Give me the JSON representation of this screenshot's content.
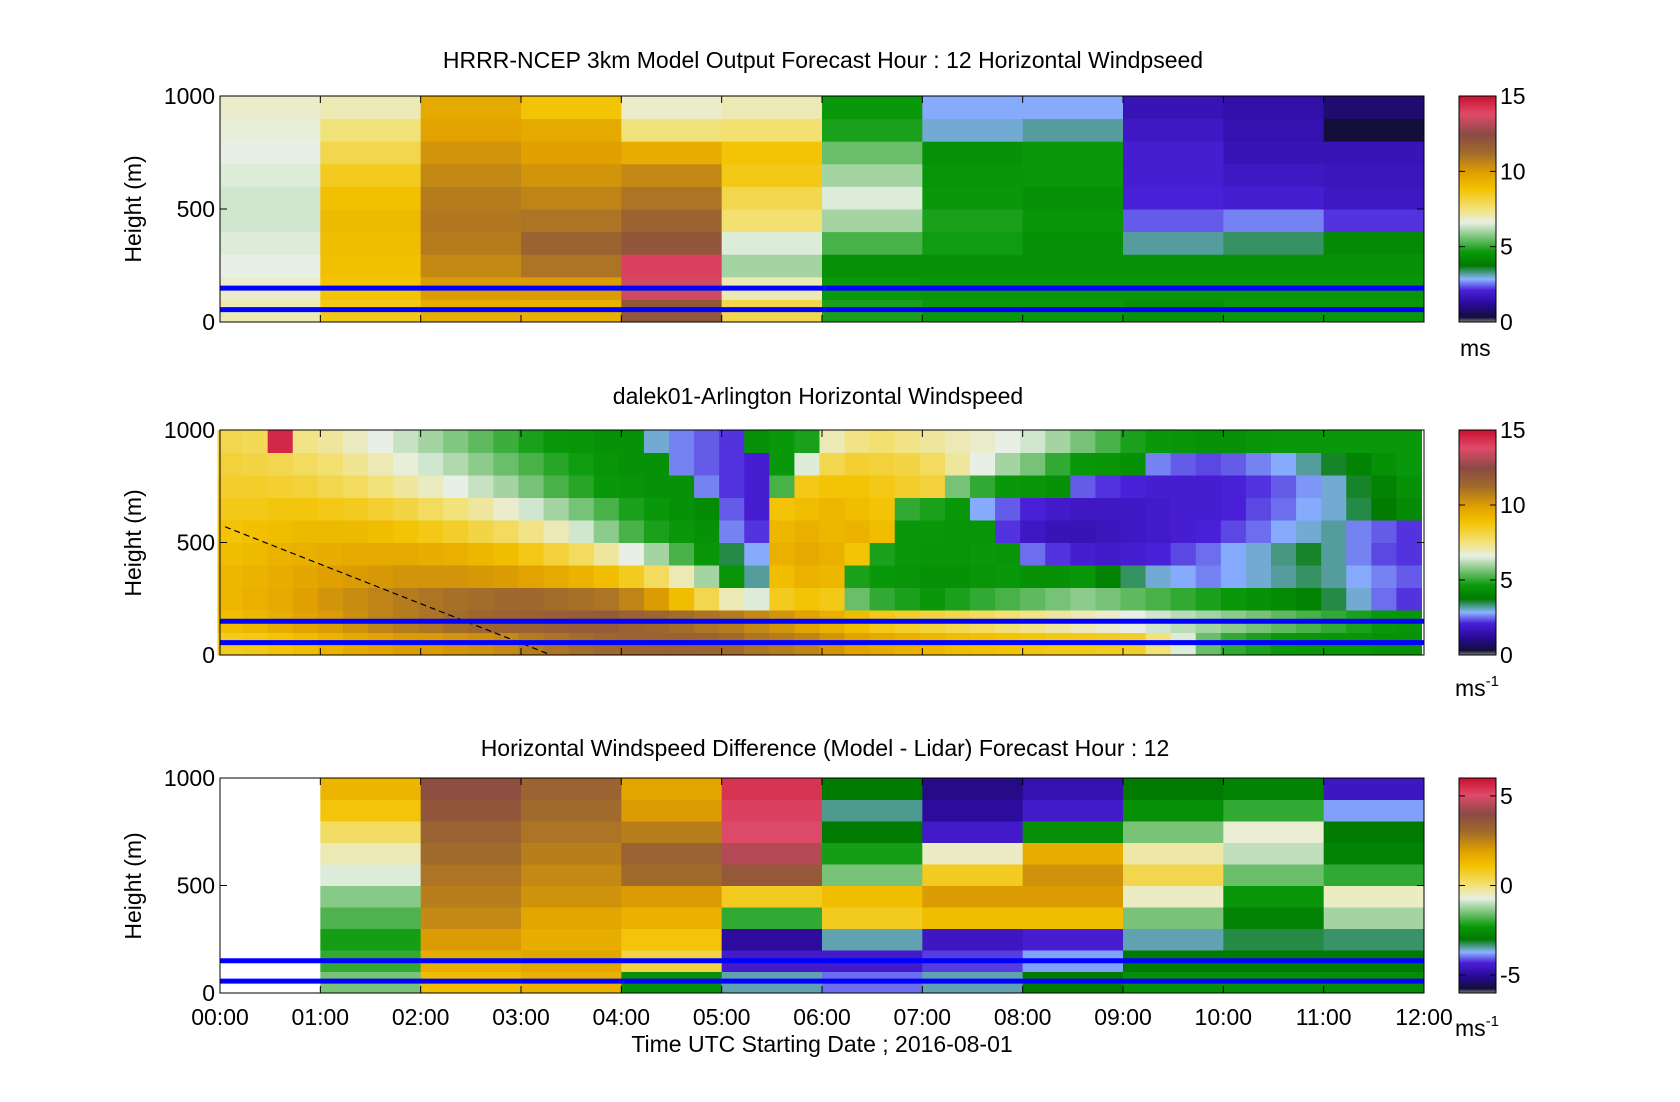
{
  "chart_data": [
    {
      "type": "heatmap",
      "title": "HRRR-NCEP 3km Model Output   Forecast Hour : 12 Horizontal Windpseed",
      "ylabel": "Height (m)",
      "xlim": [
        "00:00",
        "12:00"
      ],
      "ylim": [
        0,
        1000
      ],
      "yticks": [
        "0",
        "500",
        "1000"
      ],
      "colorbar": {
        "range": [
          0,
          15
        ],
        "ticks": [
          "0",
          "5",
          "10",
          "15"
        ],
        "unit": "ms",
        "unit_sup": ""
      },
      "reference_heights": [
        150,
        55
      ],
      "columns": [
        {
          "x": [
            "00:00",
            "01:00"
          ],
          "values_low_to_high": [
            7,
            6.8,
            6.6,
            6.5,
            6.4,
            6.4,
            6.5,
            6.6,
            6.7,
            6.8
          ]
        },
        {
          "x": [
            "01:00",
            "02:00"
          ],
          "values_low_to_high": [
            8.6,
            8.8,
            8.9,
            9,
            9.1,
            8.9,
            8.5,
            8,
            7.5,
            7
          ]
        },
        {
          "x": [
            "02:00",
            "03:00"
          ],
          "values_low_to_high": [
            9.5,
            10,
            10.5,
            10.8,
            10.9,
            10.8,
            10.5,
            10.2,
            9.8,
            9.6
          ]
        },
        {
          "x": [
            "03:00",
            "04:00"
          ],
          "values_low_to_high": [
            9.4,
            10,
            11,
            11.5,
            11,
            10.6,
            10.2,
            9.9,
            9.6,
            8.8
          ]
        },
        {
          "x": [
            "04:00",
            "05:00"
          ],
          "values_low_to_high": [
            12,
            13.5,
            14,
            12,
            11.5,
            11,
            10.5,
            9.5,
            7.5,
            6.8
          ]
        },
        {
          "x": [
            "05:00",
            "06:00"
          ],
          "values_low_to_high": [
            8,
            7,
            6,
            6.5,
            7.6,
            8,
            8.6,
            8.8,
            7.6,
            7
          ]
        },
        {
          "x": [
            "06:00",
            "07:00"
          ],
          "values_low_to_high": [
            4.8,
            4.6,
            4.4,
            5.2,
            6,
            6.5,
            6,
            5.5,
            4.8,
            4.6
          ]
        },
        {
          "x": [
            "07:00",
            "08:00"
          ],
          "values_low_to_high": [
            4.6,
            4.5,
            4.4,
            4.7,
            4.8,
            4.6,
            4.5,
            4.4,
            3,
            2.8
          ]
        },
        {
          "x": [
            "08:00",
            "09:00"
          ],
          "values_low_to_high": [
            4.6,
            4.5,
            4.4,
            4.4,
            4.5,
            4.4,
            4.6,
            4.6,
            3.2,
            2.8
          ]
        },
        {
          "x": [
            "09:00",
            "10:00"
          ],
          "values_low_to_high": [
            4.4,
            4.5,
            4.4,
            3.2,
            2.4,
            2.1,
            2,
            2,
            1.8,
            1.6
          ]
        },
        {
          "x": [
            "10:00",
            "11:00"
          ],
          "values_low_to_high": [
            4.6,
            4.5,
            4.4,
            3.4,
            2.6,
            2,
            1.8,
            1.6,
            1.5,
            1.4
          ]
        },
        {
          "x": [
            "11:00",
            "12:00"
          ],
          "values_low_to_high": [
            4.6,
            4.5,
            4.4,
            4.2,
            2.2,
            1.8,
            1.7,
            1.6,
            0.3,
            0.8
          ]
        }
      ]
    },
    {
      "type": "heatmap",
      "title": "dalek01-Arlington  Horizontal Windspeed",
      "ylabel": "Height (m)",
      "xlim": [
        "00:00",
        "12:00"
      ],
      "ylim": [
        0,
        1000
      ],
      "yticks": [
        "0",
        "500",
        "1000"
      ],
      "colorbar": {
        "range": [
          0,
          15
        ],
        "ticks": [
          "0",
          "5",
          "10",
          "15"
        ],
        "unit": "ms",
        "unit_sup": "-1"
      },
      "reference_heights": [
        150,
        55
      ],
      "boundary_line": [
        [
          0.05,
          570
        ],
        [
          3.3,
          0
        ]
      ],
      "time_hours": [
        0.1,
        0.35,
        0.6,
        0.85,
        1.1,
        1.35,
        1.6,
        1.85,
        2.1,
        2.35,
        2.6,
        2.85,
        3.1,
        3.35,
        3.6,
        3.85,
        4.1,
        4.35,
        4.6,
        4.85,
        5.1,
        5.35,
        5.6,
        5.85,
        6.1,
        6.35,
        6.6,
        6.85,
        7.1,
        7.35,
        7.6,
        7.85,
        8.1,
        8.35,
        8.6,
        8.85,
        9.1,
        9.35,
        9.6,
        9.85,
        10.1,
        10.35,
        10.6,
        10.85,
        11.1,
        11.35,
        11.6,
        11.85
      ],
      "heights": [
        50,
        150,
        250,
        350,
        450,
        550,
        650,
        750,
        850,
        950
      ],
      "values_by_height": [
        [
          8.5,
          8.6,
          8.8,
          9,
          9.3,
          9.6,
          9.8,
          10,
          10,
          10.2,
          10.3,
          10.5,
          10.8,
          11,
          11.2,
          11.4,
          11.5,
          11.6,
          11.6,
          11.5,
          11.3,
          11,
          10.8,
          10.6,
          10.2,
          9.8,
          9.6,
          9.4,
          9.2,
          9,
          8.9,
          8.8,
          8.7,
          8.6,
          8.6,
          8.5,
          8.4,
          7.5,
          6.5,
          5.5,
          5,
          4.8,
          4.6,
          4.5,
          4.5,
          4.5,
          4.4,
          4.4
        ],
        [
          9,
          9.2,
          9.5,
          9.8,
          10,
          10.3,
          10.6,
          10.8,
          11,
          11.2,
          11.4,
          11.5,
          11.6,
          11.7,
          11.8,
          11.8,
          11.6,
          11.4,
          11.2,
          11,
          10.8,
          10.5,
          10.2,
          9.8,
          9.4,
          9,
          8.6,
          8.4,
          8.2,
          8,
          7.8,
          7.6,
          7.4,
          7.2,
          7,
          6.8,
          6.6,
          6.4,
          6.2,
          6,
          5.8,
          5.6,
          5.4,
          5.2,
          5,
          4.8,
          4.6,
          4.5
        ],
        [
          9.2,
          9.4,
          9.6,
          9.9,
          10.2,
          10.4,
          10.6,
          10.8,
          11,
          11.1,
          11.2,
          11.3,
          11.3,
          11.2,
          11.1,
          11,
          10.6,
          10,
          9,
          8,
          7,
          6.5,
          8.5,
          8.8,
          8.6,
          5.5,
          5,
          4.8,
          4.6,
          4.8,
          5,
          5.2,
          5.4,
          5.6,
          5.8,
          5.6,
          5.4,
          5.2,
          5,
          4.8,
          4.6,
          4.4,
          4.2,
          4,
          3.5,
          3,
          2.5,
          2.2
        ],
        [
          9.2,
          9.3,
          9.5,
          9.7,
          9.9,
          10,
          10.1,
          10.2,
          10.2,
          10.2,
          10.1,
          10,
          9.8,
          9.6,
          9.3,
          9,
          8.5,
          7.8,
          7,
          6,
          4.5,
          3.2,
          9,
          9.3,
          9.2,
          4.8,
          4.6,
          4.5,
          4.4,
          4.4,
          4.5,
          4.6,
          4.4,
          4.4,
          4.5,
          4,
          3.4,
          3,
          2.8,
          2.6,
          2.8,
          3,
          3.2,
          3.4,
          3.2,
          2.8,
          2.6,
          2.4
        ],
        [
          9,
          9.1,
          9.3,
          9.4,
          9.5,
          9.6,
          9.6,
          9.6,
          9.5,
          9.4,
          9.2,
          9,
          8.6,
          8.2,
          7.8,
          7.2,
          6.6,
          6,
          5.2,
          4.5,
          3.5,
          2.8,
          9.4,
          9.6,
          9.4,
          8.8,
          4.8,
          4.6,
          4.5,
          4.5,
          4.6,
          4.5,
          2.5,
          2.2,
          2,
          1.9,
          2,
          2.1,
          2.3,
          2.5,
          2.8,
          3,
          3.3,
          3.6,
          3.2,
          2.6,
          2.3,
          2.2
        ],
        [
          8.8,
          8.9,
          9,
          9.1,
          9.1,
          9.1,
          9,
          8.8,
          8.6,
          8.4,
          8.1,
          7.8,
          7.4,
          7,
          6.4,
          5.8,
          5.2,
          4.8,
          4.6,
          4.4,
          2.6,
          2.2,
          9.2,
          9.4,
          9.2,
          9.3,
          9,
          4.6,
          4.6,
          4.5,
          4.5,
          2.2,
          1.8,
          1.6,
          1.6,
          1.7,
          1.8,
          1.9,
          2,
          2.1,
          2.3,
          2.5,
          2.8,
          3,
          3.2,
          2.6,
          2.4,
          2.2
        ],
        [
          8.6,
          8.6,
          8.7,
          8.7,
          8.6,
          8.5,
          8.3,
          8.1,
          7.8,
          7.5,
          7.2,
          6.8,
          6.4,
          6,
          5.6,
          5.2,
          4.8,
          4.6,
          4.4,
          4.2,
          2.4,
          2,
          8.8,
          9,
          9.2,
          9,
          8.8,
          5,
          4.8,
          4.6,
          2.8,
          2.4,
          2.1,
          1.9,
          1.8,
          1.8,
          1.8,
          1.9,
          2,
          2,
          2.1,
          2.3,
          2.5,
          2.8,
          3,
          3.5,
          3.8,
          4.2
        ],
        [
          8.4,
          8.4,
          8.3,
          8.2,
          8,
          7.8,
          7.5,
          7.2,
          6.9,
          6.6,
          6.3,
          6,
          5.6,
          5.2,
          4.9,
          4.6,
          4.5,
          4.4,
          4.4,
          2.6,
          2.2,
          2,
          5.2,
          8.6,
          8.8,
          8.8,
          8.6,
          8.4,
          8.2,
          5.6,
          5,
          4.6,
          4.5,
          4.4,
          2.4,
          2.2,
          2.1,
          2,
          2,
          2,
          2.1,
          2.2,
          2.4,
          2.7,
          3,
          3.6,
          4,
          4.4
        ],
        [
          8.2,
          8.1,
          8,
          7.8,
          7.6,
          7.3,
          7,
          6.7,
          6.4,
          6.1,
          5.8,
          5.5,
          5.2,
          4.9,
          4.7,
          4.5,
          4.4,
          4.4,
          2.6,
          2.4,
          2.2,
          2,
          4.6,
          6.5,
          8,
          8.3,
          8.2,
          8.1,
          7.8,
          7.2,
          6.6,
          6,
          5.6,
          5,
          4.6,
          4.5,
          4.4,
          2.6,
          2.4,
          2.3,
          2.4,
          2.6,
          2.8,
          3.2,
          3.6,
          4,
          4.4,
          4.6
        ],
        [
          8,
          7.9,
          14.5,
          7.4,
          7.2,
          6.9,
          6.6,
          6.3,
          6,
          5.7,
          5.4,
          5.1,
          4.8,
          4.6,
          4.5,
          4.4,
          4.4,
          3,
          2.6,
          2.4,
          2.2,
          4.4,
          4.6,
          4.8,
          7,
          7.4,
          7.6,
          7.4,
          7.2,
          7,
          6.8,
          6.6,
          6.4,
          6,
          5.6,
          5.2,
          4.8,
          4.6,
          4.5,
          4.4,
          4.4,
          4.5,
          4.6,
          4.6,
          4.6,
          4.6,
          4.6,
          4.6
        ]
      ]
    },
    {
      "type": "heatmap",
      "title": "Horizontal Windspeed Difference (Model - Lidar) Forecast Hour : 12",
      "xlabel": "Time UTC  Starting Date ; 2016-08-01",
      "ylabel": "Height (m)",
      "xticks": [
        "00:00",
        "01:00",
        "02:00",
        "03:00",
        "04:00",
        "05:00",
        "06:00",
        "07:00",
        "08:00",
        "09:00",
        "10:00",
        "11:00",
        "12:00"
      ],
      "xlim": [
        "00:00",
        "12:00"
      ],
      "ylim": [
        0,
        1000
      ],
      "yticks": [
        "0",
        "500",
        "1000"
      ],
      "colorbar": {
        "range": [
          -6,
          6
        ],
        "ticks": [
          "-5",
          "0",
          "5"
        ],
        "unit": "ms",
        "unit_sup": "-1"
      },
      "reference_heights": [
        150,
        55
      ],
      "columns": [
        {
          "x": [
            "00:00",
            "01:00"
          ],
          "values_low_to_high": null
        },
        {
          "x": [
            "01:00",
            "02:00"
          ],
          "values_low_to_high": [
            -1.5,
            -2,
            -2.2,
            -1.8,
            -1.4,
            -0.8,
            -0.4,
            0.2,
            1,
            1.4
          ]
        },
        {
          "x": [
            "02:00",
            "03:00"
          ],
          "values_low_to_high": [
            1.2,
            1.6,
            2,
            2.4,
            2.6,
            2.8,
            3,
            3.2,
            3.6,
            3.8
          ]
        },
        {
          "x": [
            "03:00",
            "04:00"
          ],
          "values_low_to_high": [
            1.5,
            1.8,
            1.6,
            1.8,
            2.2,
            2.4,
            2.6,
            2.8,
            3,
            3.2
          ]
        },
        {
          "x": [
            "04:00",
            "05:00"
          ],
          "values_low_to_high": [
            -2.5,
            0.5,
            1,
            1.5,
            2,
            3,
            3.2,
            2.6,
            2,
            1.8
          ]
        },
        {
          "x": [
            "05:00",
            "06:00"
          ],
          "values_low_to_high": [
            -3.5,
            -4.5,
            -5,
            -2,
            0.8,
            3.5,
            4.5,
            5,
            5.2,
            5.4
          ]
        },
        {
          "x": [
            "06:00",
            "07:00"
          ],
          "values_low_to_high": [
            -4,
            -4.5,
            -3.5,
            0.8,
            1.2,
            -1.5,
            -2.2,
            -3,
            -3.4,
            -3
          ]
        },
        {
          "x": [
            "07:00",
            "08:00"
          ],
          "values_low_to_high": [
            -3.5,
            -4.2,
            -4.6,
            1.2,
            2,
            0.8,
            -0.5,
            -4.5,
            -5,
            -5.2
          ]
        },
        {
          "x": [
            "08:00",
            "09:00"
          ],
          "values_low_to_high": [
            -3,
            -3.8,
            -4.4,
            1.2,
            2,
            2.2,
            1.6,
            -2.5,
            -4.5,
            -4.8
          ]
        },
        {
          "x": [
            "09:00",
            "10:00"
          ],
          "values_low_to_high": [
            -2.5,
            -3,
            -3.5,
            -1.5,
            -0.5,
            0.4,
            -0.3,
            -1.5,
            -2.5,
            -3
          ]
        },
        {
          "x": [
            "10:00",
            "11:00"
          ],
          "values_low_to_high": [
            -2.5,
            -3,
            -3.2,
            -2.8,
            -2.4,
            -1.6,
            -1,
            -0.6,
            -2,
            -2.8
          ]
        },
        {
          "x": [
            "11:00",
            "12:00"
          ],
          "values_low_to_high": [
            -2.6,
            -3,
            -3.3,
            -1.2,
            -0.5,
            -2,
            -2.8,
            -3,
            -3.8,
            -4.6
          ]
        }
      ]
    }
  ]
}
